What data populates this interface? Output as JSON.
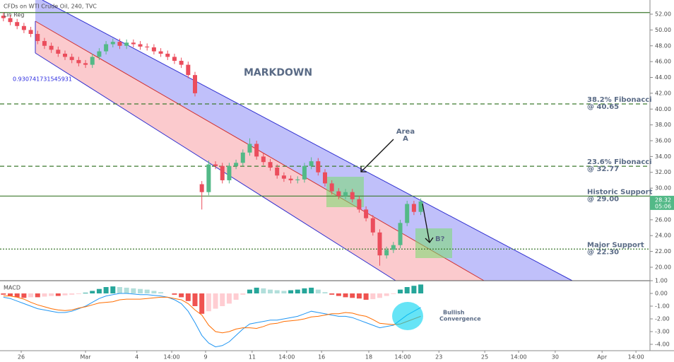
{
  "chart_data": [
    {
      "type": "candlestick",
      "title": "CFDs on WTI Crude Oil, 240, TVC",
      "indicator": "Lin Reg",
      "pearson": 0.930741731545931,
      "up_color": "#53b987",
      "down_color": "#eb4d5c",
      "x": [
        1,
        3,
        5,
        7,
        9,
        11,
        13,
        15,
        17,
        19,
        21,
        23,
        25,
        27,
        29,
        31,
        33,
        35,
        37,
        39,
        41,
        43,
        45,
        47,
        49,
        51,
        53,
        55,
        57,
        59,
        61,
        63,
        65,
        67,
        69,
        71,
        73,
        75,
        77,
        79,
        81,
        83,
        85,
        87,
        89,
        91,
        93,
        95,
        97,
        99,
        101,
        103,
        105,
        107,
        109,
        111,
        113,
        115,
        117,
        119,
        121,
        123
      ],
      "open": [
        51.8,
        51.5,
        51.0,
        50.5,
        50.0,
        49.5,
        48.6,
        48.0,
        47.5,
        47.0,
        46.6,
        46.2,
        45.8,
        45.6,
        46.6,
        47.3,
        48.2,
        48.5,
        48.0,
        48.4,
        48.2,
        47.9,
        47.8,
        47.3,
        47.0,
        46.6,
        46.1,
        45.6,
        44.3,
        30.5,
        29.5,
        33.0,
        32.8,
        31.0,
        32.8,
        33.2,
        34.5,
        35.6,
        34.0,
        33.3,
        32.6,
        31.6,
        31.2,
        31.0,
        31.1,
        32.8,
        33.4,
        32.0,
        30.6,
        29.6,
        29.0,
        29.5,
        28.6,
        27.3,
        26.2,
        24.4,
        21.5,
        22.2,
        22.8,
        25.6,
        28.0,
        27.0
      ],
      "high": [
        52.2,
        51.9,
        51.4,
        50.9,
        50.4,
        49.9,
        49.0,
        48.4,
        47.9,
        47.4,
        47.0,
        46.6,
        46.2,
        47.0,
        47.7,
        48.6,
        48.9,
        48.9,
        48.8,
        48.8,
        48.6,
        48.3,
        48.2,
        47.7,
        47.4,
        47.0,
        46.5,
        46.0,
        44.7,
        30.9,
        33.5,
        33.4,
        33.2,
        33.2,
        33.6,
        34.9,
        36.3,
        36.0,
        34.4,
        33.7,
        33.0,
        32.0,
        31.6,
        31.5,
        33.2,
        33.9,
        33.8,
        32.4,
        31.0,
        30.0,
        29.9,
        29.9,
        29.0,
        27.7,
        26.6,
        24.8,
        22.6,
        23.2,
        26.0,
        28.4,
        28.4,
        28.7
      ],
      "low": [
        51.1,
        50.6,
        50.1,
        49.6,
        49.1,
        48.2,
        47.6,
        47.1,
        46.6,
        46.2,
        45.8,
        45.4,
        45.2,
        45.2,
        46.2,
        46.9,
        47.8,
        47.6,
        47.6,
        47.8,
        47.5,
        47.4,
        46.9,
        46.6,
        46.2,
        45.7,
        45.2,
        43.9,
        41.6,
        27.3,
        29.1,
        32.4,
        30.6,
        30.6,
        32.4,
        32.8,
        34.1,
        33.6,
        32.9,
        32.2,
        31.2,
        30.8,
        30.6,
        30.6,
        30.7,
        32.4,
        31.6,
        30.2,
        29.2,
        28.6,
        28.6,
        28.2,
        26.9,
        25.8,
        24.0,
        20.2,
        21.1,
        21.8,
        22.4,
        25.2,
        26.6,
        26.6
      ],
      "close": [
        51.5,
        51.0,
        50.5,
        50.0,
        49.5,
        48.6,
        48.0,
        47.5,
        47.0,
        46.6,
        46.2,
        45.8,
        45.6,
        46.6,
        47.3,
        48.2,
        48.5,
        48.0,
        48.4,
        48.2,
        47.9,
        47.8,
        47.3,
        47.0,
        46.6,
        46.1,
        45.6,
        44.3,
        42.0,
        29.5,
        33.0,
        32.8,
        31.0,
        32.8,
        33.2,
        34.5,
        35.6,
        34.0,
        33.3,
        32.6,
        31.6,
        31.2,
        31.0,
        31.1,
        32.8,
        33.4,
        32.0,
        30.6,
        29.6,
        29.0,
        29.5,
        28.6,
        27.3,
        26.2,
        24.4,
        21.5,
        22.2,
        22.8,
        25.6,
        28.0,
        27.0,
        28.32
      ],
      "price_tag": 28.32,
      "price_tag_time": "05:06",
      "xlim": [
        0,
        190
      ],
      "ylim": [
        18.3,
        53.79
      ],
      "xticks": [
        {
          "value": 6.2,
          "label": "26"
        },
        {
          "value": 25,
          "label": "Mar"
        },
        {
          "value": 40,
          "label": "4"
        },
        {
          "value": 50.2,
          "label": "14:00"
        },
        {
          "value": 60.1,
          "label": "9"
        },
        {
          "value": 73.7,
          "label": "11"
        },
        {
          "value": 83.8,
          "label": "14:00"
        },
        {
          "value": 94,
          "label": "16"
        },
        {
          "value": 107.8,
          "label": "18"
        },
        {
          "value": 117.7,
          "label": "14:00"
        },
        {
          "value": 128.3,
          "label": "23"
        },
        {
          "value": 141.7,
          "label": "25"
        },
        {
          "value": 151.6,
          "label": "14:00"
        },
        {
          "value": 162.3,
          "label": "30"
        },
        {
          "value": 176,
          "label": "Apr"
        },
        {
          "value": 185.9,
          "label": "14:00"
        }
      ],
      "yticks": [
        {
          "value": 20,
          "label": "20.00"
        },
        {
          "value": 22,
          "label": "22.00"
        },
        {
          "value": 24,
          "label": "24.00"
        },
        {
          "value": 26,
          "label": "26.00"
        },
        {
          "value": 28,
          "label": "28.00"
        },
        {
          "value": 30,
          "label": "30.00"
        },
        {
          "value": 32,
          "label": "32.00"
        },
        {
          "value": 34,
          "label": "34.00"
        },
        {
          "value": 36,
          "label": "36.00"
        },
        {
          "value": 38,
          "label": "38.00"
        },
        {
          "value": 40,
          "label": "40.00"
        },
        {
          "value": 42,
          "label": "42.00"
        },
        {
          "value": 44,
          "label": "44.00"
        },
        {
          "value": 46,
          "label": "46.00"
        },
        {
          "value": 48,
          "label": "48.00"
        },
        {
          "value": 50,
          "label": "50.00"
        },
        {
          "value": 52,
          "label": "52.00"
        }
      ],
      "levels": [
        {
          "value": 52.2,
          "style": "solid",
          "color": "#3d7a2e"
        },
        {
          "value": 40.65,
          "style": "dashed",
          "color": "#3d7a2e",
          "label": [
            "38.2% Fibonacci",
            "@ 40.65"
          ]
        },
        {
          "value": 32.77,
          "style": "dashed",
          "color": "#3d7a2e",
          "label": [
            "23.6% Fibonacci",
            "@ 32.77"
          ]
        },
        {
          "value": 29.0,
          "style": "solid",
          "color": "#3d7a2e",
          "label": [
            "Historic Support",
            "@ 29.00"
          ]
        },
        {
          "value": 22.3,
          "style": "dotted",
          "color": "#3d7a2e",
          "label": [
            "Major Support",
            "@ 22.30"
          ]
        }
      ],
      "annotations": {
        "markdown": "MARKDOWN",
        "area_a": [
          "Area",
          "A"
        ],
        "b": "B?"
      }
    },
    {
      "type": "macd",
      "title": "MACD",
      "annotation": [
        "Bullish",
        "Convergence"
      ],
      "ylim": [
        -4.5,
        1.0
      ],
      "yticks": [
        {
          "value": 1,
          "label": "1.00"
        },
        {
          "value": 0,
          "label": "0.00"
        },
        {
          "value": -1,
          "label": "-1.00"
        },
        {
          "value": -2,
          "label": "-2.00"
        },
        {
          "value": -3,
          "label": "-3.00"
        },
        {
          "value": -4,
          "label": "-4.00"
        }
      ],
      "histogram": [
        -0.1,
        -0.2,
        -0.3,
        -0.35,
        -0.3,
        -0.3,
        -0.25,
        -0.2,
        -0.2,
        -0.15,
        -0.1,
        -0.05,
        0.05,
        0.2,
        0.35,
        0.5,
        0.55,
        0.5,
        0.45,
        0.4,
        0.35,
        0.3,
        0.2,
        0.1,
        0.0,
        -0.1,
        -0.3,
        -0.6,
        -1.0,
        -1.6,
        -1.4,
        -1.2,
        -1.0,
        -0.8,
        -0.5,
        -0.1,
        0.3,
        0.45,
        0.4,
        0.3,
        0.25,
        0.2,
        0.25,
        0.3,
        0.4,
        0.45,
        0.3,
        0.1,
        -0.1,
        -0.2,
        -0.3,
        -0.35,
        -0.4,
        -0.5,
        -0.45,
        -0.35,
        -0.2,
        -0.05,
        0.3,
        0.5,
        0.6,
        0.7
      ],
      "series": [
        {
          "color": "#2196f3",
          "values": [
            -0.3,
            -0.4,
            -0.6,
            -0.8,
            -1.0,
            -1.2,
            -1.3,
            -1.4,
            -1.5,
            -1.5,
            -1.4,
            -1.2,
            -1.0,
            -0.7,
            -0.4,
            -0.2,
            -0.1,
            0.0,
            0.0,
            -0.05,
            -0.1,
            -0.1,
            -0.15,
            -0.2,
            -0.3,
            -0.5,
            -0.8,
            -1.4,
            -2.3,
            -3.3,
            -3.9,
            -4.2,
            -4.1,
            -3.8,
            -3.3,
            -2.8,
            -2.4,
            -2.3,
            -2.2,
            -2.1,
            -2.1,
            -2.0,
            -1.9,
            -1.8,
            -1.6,
            -1.4,
            -1.5,
            -1.6,
            -1.7,
            -1.8,
            -1.8,
            -1.9,
            -2.1,
            -2.3,
            -2.5,
            -2.7,
            -2.6,
            -2.5,
            -2.1,
            -1.7,
            -1.4,
            -1.1
          ]
        },
        {
          "color": "#ff6d00",
          "values": [
            -0.2,
            -0.2,
            -0.3,
            -0.45,
            -0.7,
            -0.9,
            -1.05,
            -1.2,
            -1.3,
            -1.35,
            -1.3,
            -1.15,
            -1.05,
            -0.9,
            -0.75,
            -0.7,
            -0.65,
            -0.5,
            -0.45,
            -0.45,
            -0.45,
            -0.4,
            -0.35,
            -0.3,
            -0.3,
            -0.4,
            -0.5,
            -0.8,
            -1.3,
            -1.7,
            -2.5,
            -3.0,
            -3.1,
            -3.0,
            -2.8,
            -2.7,
            -2.7,
            -2.75,
            -2.6,
            -2.4,
            -2.35,
            -2.2,
            -2.15,
            -2.1,
            -2.0,
            -1.85,
            -1.8,
            -1.7,
            -1.6,
            -1.6,
            -1.5,
            -1.55,
            -1.7,
            -1.8,
            -2.05,
            -2.35,
            -2.4,
            -2.45,
            -2.4,
            -2.2,
            -2.0,
            -1.8
          ]
        }
      ]
    }
  ]
}
